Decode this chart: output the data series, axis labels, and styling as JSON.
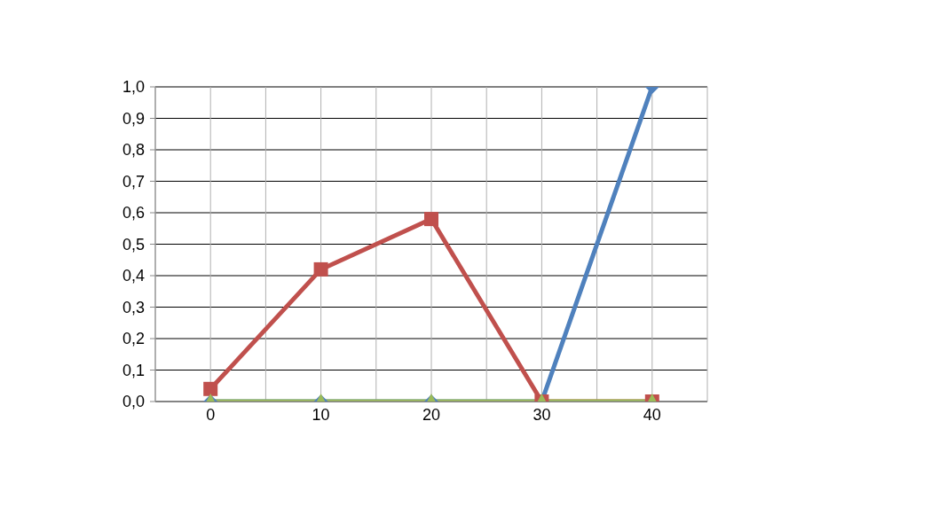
{
  "chart_data": {
    "type": "line",
    "x": [
      0,
      10,
      20,
      30,
      40
    ],
    "series": [
      {
        "color": "#4f81bd",
        "marker": "diamond",
        "values": [
          0,
          0,
          0,
          0,
          1
        ]
      },
      {
        "color": "#c0504d",
        "marker": "square",
        "values": [
          0.04,
          0.42,
          0.58,
          0,
          0
        ]
      },
      {
        "color": "#9bbb59",
        "marker": "triangle",
        "values": [
          0,
          0,
          0,
          0,
          0
        ]
      }
    ],
    "xlim": [
      -5,
      45
    ],
    "xticks": [
      {
        "value": -5,
        "label": null
      },
      0,
      {
        "value": 5,
        "label": null
      },
      10,
      {
        "value": 15,
        "label": null
      },
      20,
      {
        "value": 25,
        "label": null
      },
      30,
      {
        "value": 35,
        "label": null
      },
      40,
      {
        "value": 45,
        "label": null
      }
    ],
    "ylim": [
      0,
      1
    ],
    "yticks": [
      {
        "value": 0,
        "label": "0,0"
      },
      {
        "value": 0.1,
        "label": "0,1"
      },
      {
        "value": 0.2,
        "label": "0,2"
      },
      {
        "value": 0.3,
        "label": "0,3"
      },
      {
        "value": 0.4,
        "label": "0,4"
      },
      {
        "value": 0.5,
        "label": "0,5"
      },
      {
        "value": 0.6,
        "label": "0,6"
      },
      {
        "value": 0.7,
        "label": "0,7"
      },
      {
        "value": 0.8,
        "label": "0,8"
      },
      {
        "value": 0.9,
        "label": "0,9"
      },
      {
        "value": 1,
        "label": "1,0"
      }
    ],
    "grid": true
  }
}
